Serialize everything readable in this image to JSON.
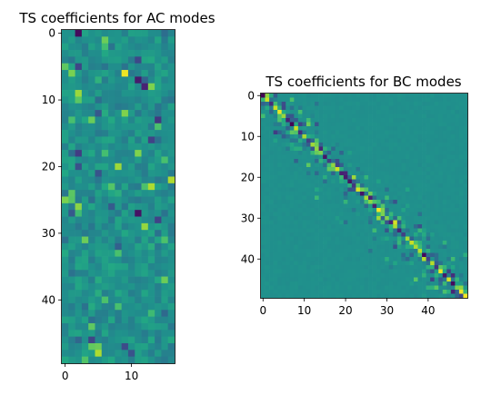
{
  "chart_data": [
    {
      "type": "heatmap",
      "title": "TS coefficients for AC modes",
      "rows": 50,
      "cols": 17,
      "xlim": [
        -0.5,
        16.5
      ],
      "ylim": [
        49.5,
        -0.5
      ],
      "x_ticks": [
        0,
        10
      ],
      "y_ticks": [
        0,
        10,
        20,
        30,
        40
      ],
      "colormap": "viridis",
      "value_range": [
        -1,
        1
      ],
      "highlights": [
        {
          "row": 0,
          "col": 2,
          "value": -0.95
        },
        {
          "row": 1,
          "col": 6,
          "value": 0.55
        },
        {
          "row": 6,
          "col": 9,
          "value": 0.95
        },
        {
          "row": 7,
          "col": 11,
          "value": -0.85
        },
        {
          "row": 8,
          "col": 12,
          "value": -0.8
        },
        {
          "row": 9,
          "col": 2,
          "value": 0.7
        },
        {
          "row": 16,
          "col": 13,
          "value": -0.6
        },
        {
          "row": 23,
          "col": 13,
          "value": 0.75
        },
        {
          "row": 26,
          "col": 2,
          "value": 0.65
        },
        {
          "row": 27,
          "col": 11,
          "value": -0.9
        },
        {
          "row": 28,
          "col": 14,
          "value": -0.6
        },
        {
          "row": 31,
          "col": 3,
          "value": 0.55
        },
        {
          "row": 44,
          "col": 4,
          "value": 0.5
        },
        {
          "row": 47,
          "col": 5,
          "value": 0.55
        },
        {
          "row": 48,
          "col": 5,
          "value": 0.75
        },
        {
          "row": 49,
          "col": 3,
          "value": 0.45
        }
      ]
    },
    {
      "type": "heatmap",
      "title": "TS coefficients for BC modes",
      "rows": 50,
      "cols": 50,
      "xlim": [
        -0.5,
        49.5
      ],
      "ylim": [
        49.5,
        -0.5
      ],
      "x_ticks": [
        0,
        10,
        20,
        30,
        40
      ],
      "y_ticks": [
        0,
        10,
        20,
        30,
        40
      ],
      "colormap": "viridis",
      "value_range": [
        -1,
        1
      ],
      "structure": "banded diagonal: strong coefficients near the main diagonal, near-zero elsewhere"
    }
  ],
  "colors": {
    "background": "#ffffff",
    "axis": "#000000"
  }
}
